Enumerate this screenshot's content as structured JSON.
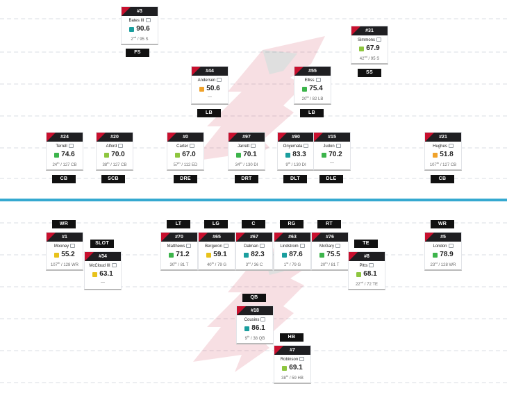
{
  "colors": {
    "team_red": "#c8102e",
    "line_of_scrimmage": "#35a9d0",
    "grade_colors": {
      "teal": "#1a9e9e",
      "green": "#3cb44b",
      "lime": "#8ec63f",
      "yellow": "#e8c21b",
      "orange": "#f0a22a"
    }
  },
  "icons": {
    "background": "falcons-logo-icon",
    "comment": "message-icon"
  },
  "defense": [
    {
      "id": "fs",
      "number": "#3",
      "name": "Bates III",
      "grade": "90.6",
      "grade_color": "#1a9e9e",
      "rank": "2",
      "rank_suffix": "nd",
      "rank_of": "/ 95 S",
      "position": "FS"
    },
    {
      "id": "ss",
      "number": "#31",
      "name": "Simmons",
      "grade": "67.9",
      "grade_color": "#8ec63f",
      "rank": "42",
      "rank_suffix": "nd",
      "rank_of": "/ 95 S",
      "position": "SS"
    },
    {
      "id": "lb1",
      "number": "#44",
      "name": "Andersen",
      "grade": "50.6",
      "grade_color": "#f0a22a",
      "rank": "",
      "rank_suffix": "",
      "rank_of": "—",
      "position": "LB"
    },
    {
      "id": "lb2",
      "number": "#55",
      "name": "Elliss",
      "grade": "75.4",
      "grade_color": "#3cb44b",
      "rank": "20",
      "rank_suffix": "th",
      "rank_of": "/ 82 LB",
      "position": "LB"
    },
    {
      "id": "cb1",
      "number": "#24",
      "name": "Terrell",
      "grade": "74.6",
      "grade_color": "#3cb44b",
      "rank": "24",
      "rank_suffix": "th",
      "rank_of": "/ 127 CB",
      "position": "CB"
    },
    {
      "id": "scb",
      "number": "#20",
      "name": "Alford",
      "grade": "70.0",
      "grade_color": "#8ec63f",
      "rank": "38",
      "rank_suffix": "th",
      "rank_of": "/ 127 CB",
      "position": "SCB"
    },
    {
      "id": "dre",
      "number": "#0",
      "name": "Carter",
      "grade": "67.0",
      "grade_color": "#8ec63f",
      "rank": "57",
      "rank_suffix": "th",
      "rank_of": "/ 112 ED",
      "position": "DRE"
    },
    {
      "id": "drt",
      "number": "#97",
      "name": "Jarrett",
      "grade": "70.1",
      "grade_color": "#3cb44b",
      "rank": "34",
      "rank_suffix": "th",
      "rank_of": "/ 130 DI",
      "position": "DRT"
    },
    {
      "id": "dlt",
      "number": "#90",
      "name": "Onyemata",
      "grade": "83.3",
      "grade_color": "#1a9e9e",
      "rank": "9",
      "rank_suffix": "th",
      "rank_of": "/ 130 DI",
      "position": "DLT"
    },
    {
      "id": "dle",
      "number": "#15",
      "name": "Judon",
      "grade": "70.2",
      "grade_color": "#3cb44b",
      "rank": "",
      "rank_suffix": "",
      "rank_of": "—",
      "position": "DLE"
    },
    {
      "id": "cb2",
      "number": "#21",
      "name": "Hughes",
      "grade": "51.8",
      "grade_color": "#f0a22a",
      "rank": "107",
      "rank_suffix": "th",
      "rank_of": "/ 127 CB",
      "position": "CB"
    }
  ],
  "offense": [
    {
      "id": "wr1",
      "number": "#1",
      "name": "Mooney",
      "grade": "55.2",
      "grade_color": "#e8c21b",
      "rank": "107",
      "rank_suffix": "th",
      "rank_of": "/ 128 WR",
      "position": "WR"
    },
    {
      "id": "slot",
      "number": "#34",
      "name": "McCloud III",
      "grade": "63.1",
      "grade_color": "#e8c21b",
      "rank": "",
      "rank_suffix": "",
      "rank_of": "—",
      "position": "SLOT"
    },
    {
      "id": "lt",
      "number": "#70",
      "name": "Matthews",
      "grade": "71.2",
      "grade_color": "#3cb44b",
      "rank": "30",
      "rank_suffix": "th",
      "rank_of": "/ 81 T",
      "position": "LT"
    },
    {
      "id": "lg",
      "number": "#65",
      "name": "Bergeron",
      "grade": "59.1",
      "grade_color": "#e8c21b",
      "rank": "40",
      "rank_suffix": "th",
      "rank_of": "/ 79 G",
      "position": "LG"
    },
    {
      "id": "c",
      "number": "#67",
      "name": "Dalman",
      "grade": "82.3",
      "grade_color": "#1a9e9e",
      "rank": "3",
      "rank_suffix": "rd",
      "rank_of": "/ 36 C",
      "position": "C"
    },
    {
      "id": "rg",
      "number": "#63",
      "name": "Lindstrom",
      "grade": "87.6",
      "grade_color": "#1a9e9e",
      "rank": "1",
      "rank_suffix": "st",
      "rank_of": "/ 79 G",
      "position": "RG"
    },
    {
      "id": "rt",
      "number": "#76",
      "name": "McGary",
      "grade": "75.5",
      "grade_color": "#3cb44b",
      "rank": "20",
      "rank_suffix": "th",
      "rank_of": "/ 81 T",
      "position": "RT"
    },
    {
      "id": "te",
      "number": "#8",
      "name": "Pitts",
      "grade": "68.1",
      "grade_color": "#8ec63f",
      "rank": "22",
      "rank_suffix": "nd",
      "rank_of": "/ 72 TE",
      "position": "TE"
    },
    {
      "id": "wr2",
      "number": "#5",
      "name": "London",
      "grade": "78.9",
      "grade_color": "#3cb44b",
      "rank": "23",
      "rank_suffix": "rd",
      "rank_of": "/ 128 WR",
      "position": "WR"
    },
    {
      "id": "qb",
      "number": "#18",
      "name": "Cousins",
      "grade": "86.1",
      "grade_color": "#1a9e9e",
      "rank": "9",
      "rank_suffix": "th",
      "rank_of": "/ 38 QB",
      "position": "QB"
    },
    {
      "id": "hb",
      "number": "#7",
      "name": "Robinson",
      "grade": "69.1",
      "grade_color": "#8ec63f",
      "rank": "38",
      "rank_suffix": "th",
      "rank_of": "/ 59 HB",
      "position": "HB"
    }
  ]
}
